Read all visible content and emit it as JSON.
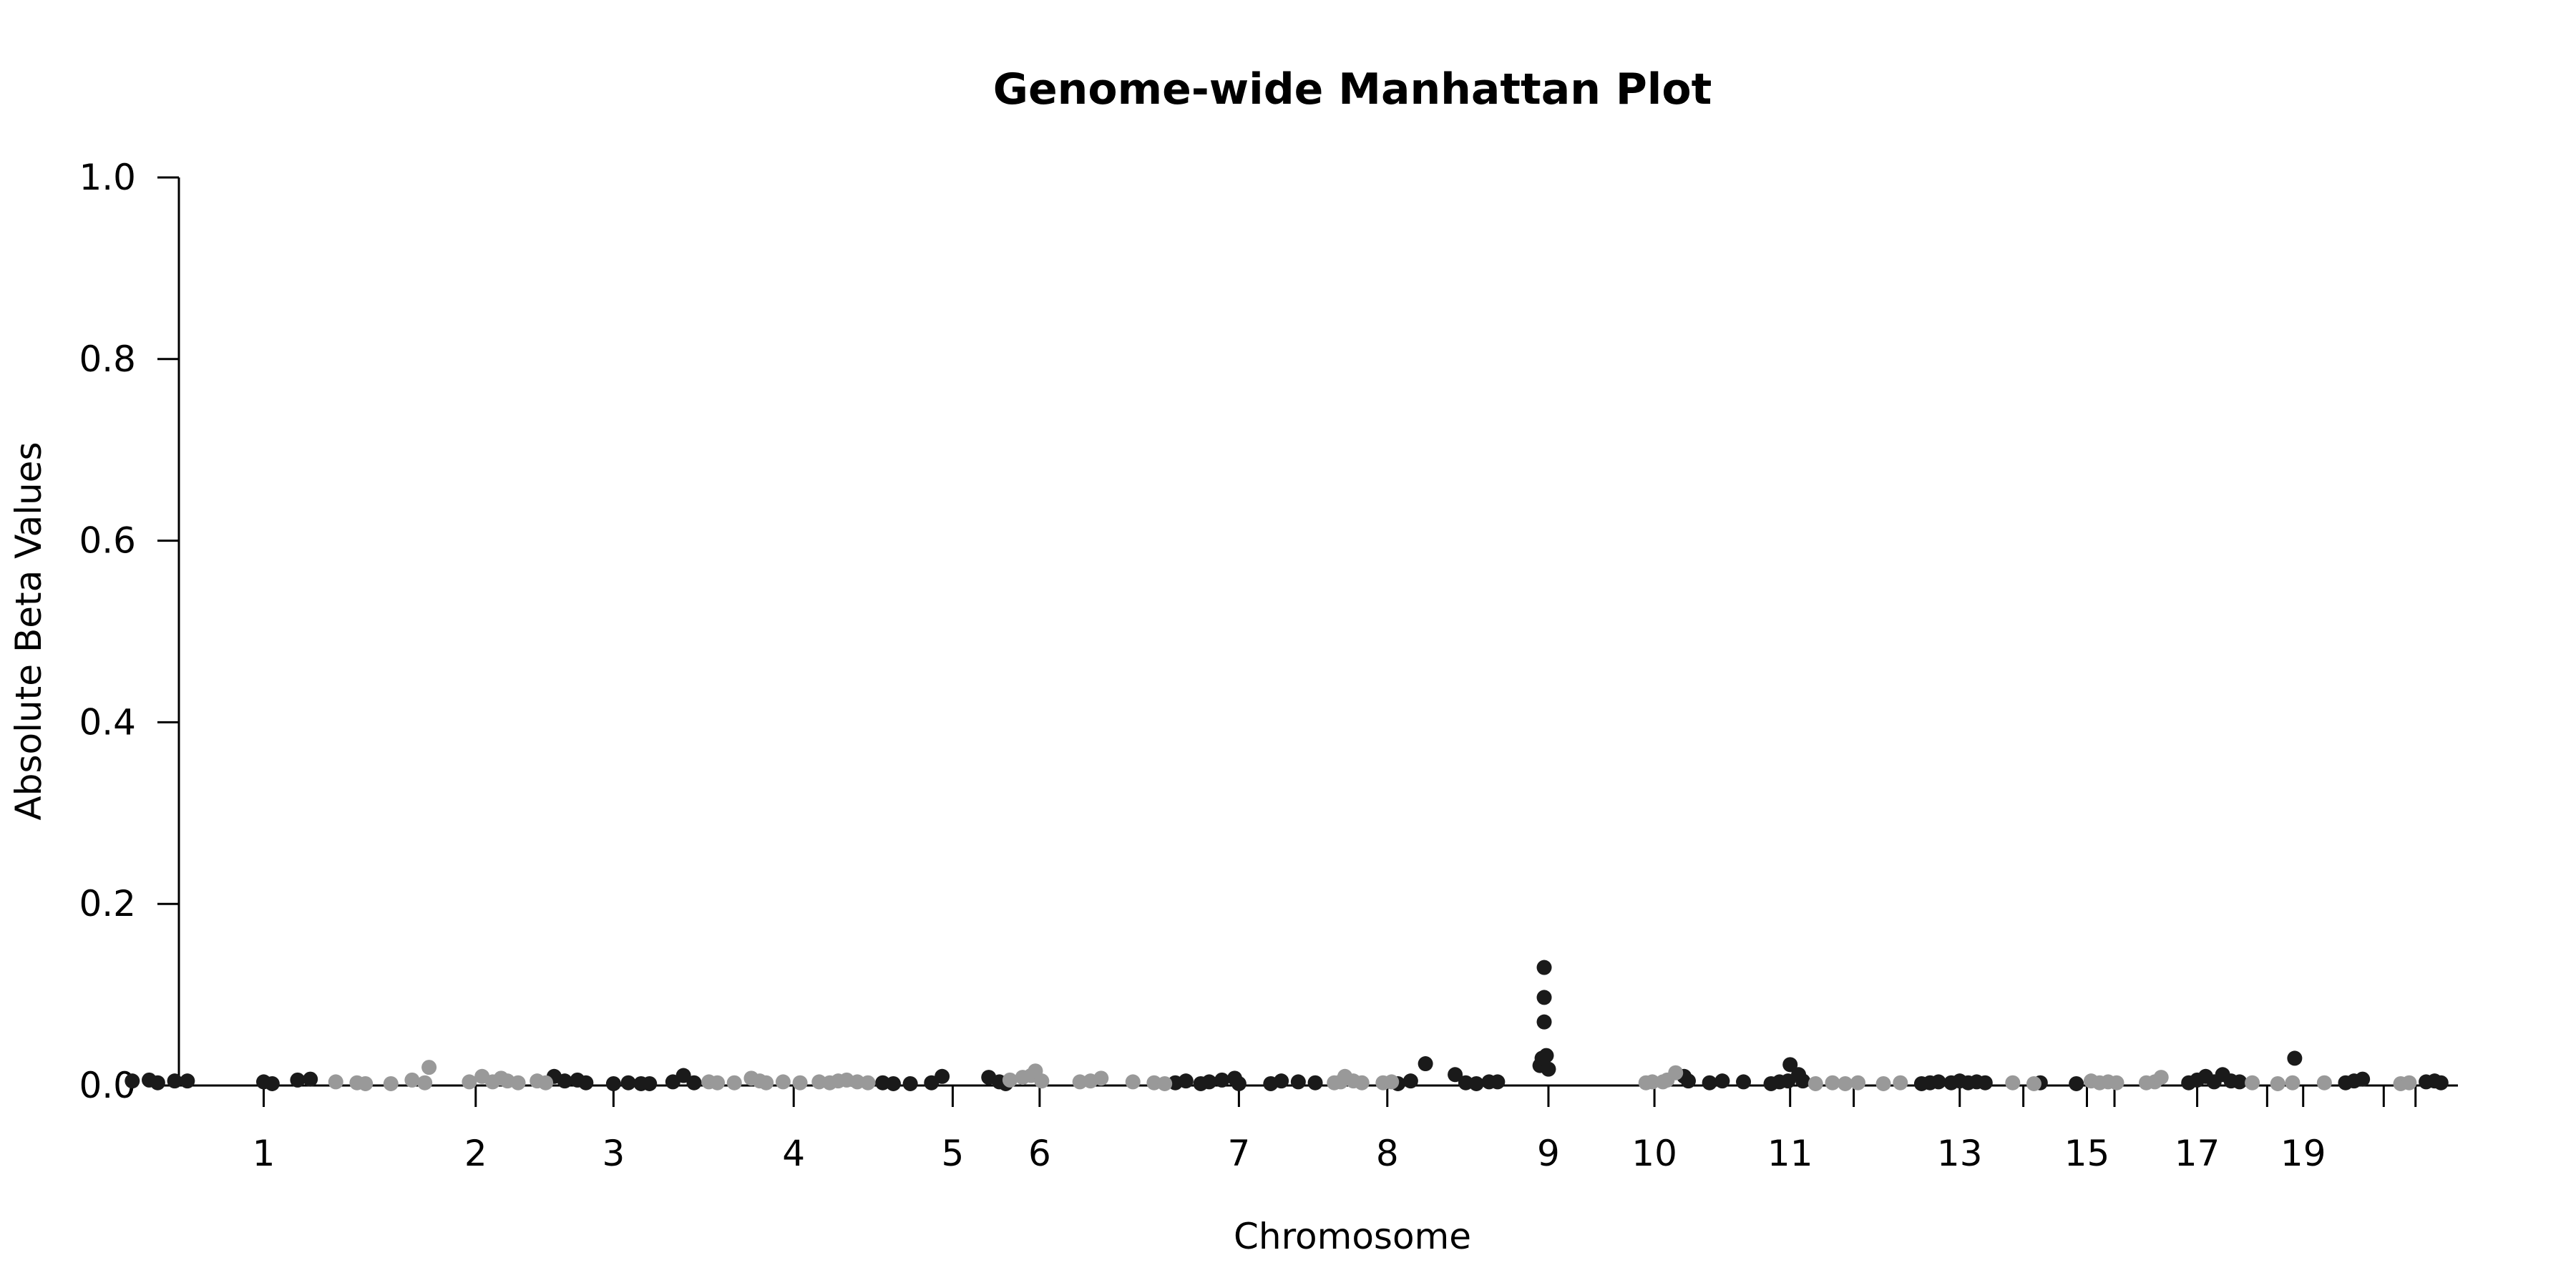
{
  "chart_data": {
    "type": "scatter",
    "title": "Genome-wide Manhattan Plot",
    "xlabel": "Chromosome",
    "ylabel": "Absolute Beta Values",
    "ylim": [
      0,
      1
    ],
    "xlim": [
      -0.4,
      10.35
    ],
    "yticks": [
      0.0,
      0.2,
      0.4,
      0.6,
      0.8,
      1.0
    ],
    "ytick_labels": [
      "0.0",
      "0.2",
      "0.4",
      "0.6",
      "0.8",
      "1.0"
    ],
    "chromosome_ticks": [
      {
        "label": "1",
        "x": 0.0
      },
      {
        "label": "2",
        "x": 1.0
      },
      {
        "label": "3",
        "x": 1.65
      },
      {
        "label": "4",
        "x": 2.5
      },
      {
        "label": "5",
        "x": 3.25
      },
      {
        "label": "6",
        "x": 3.66
      },
      {
        "label": "7",
        "x": 4.6
      },
      {
        "label": "8",
        "x": 5.3
      },
      {
        "label": "9",
        "x": 6.06
      },
      {
        "label": "10",
        "x": 6.56
      },
      {
        "label": "11",
        "x": 7.2
      },
      {
        "label": "",
        "x": 7.5
      },
      {
        "label": "13",
        "x": 8.0
      },
      {
        "label": "",
        "x": 8.3
      },
      {
        "label": "15",
        "x": 8.6
      },
      {
        "label": "",
        "x": 8.73
      },
      {
        "label": "17",
        "x": 9.12
      },
      {
        "label": "",
        "x": 9.45
      },
      {
        "label": "19",
        "x": 9.62
      },
      {
        "label": "",
        "x": 10.0
      },
      {
        "label": "",
        "x": 10.15
      }
    ],
    "grid": false,
    "legend": "none",
    "series": [
      {
        "color": "#1a1a1a",
        "points": [
          [
            -0.62,
            0.005
          ],
          [
            -0.54,
            0.006
          ],
          [
            -0.5,
            0.003
          ],
          [
            -0.42,
            0.005
          ],
          [
            -0.36,
            0.005
          ],
          [
            0.0,
            0.004
          ],
          [
            0.04,
            0.002
          ],
          [
            0.16,
            0.006
          ],
          [
            0.22,
            0.007
          ],
          [
            1.37,
            0.01
          ],
          [
            1.42,
            0.005
          ],
          [
            1.48,
            0.006
          ],
          [
            1.52,
            0.003
          ],
          [
            1.65,
            0.002
          ],
          [
            1.72,
            0.003
          ],
          [
            1.78,
            0.002
          ],
          [
            1.82,
            0.002
          ],
          [
            1.93,
            0.004
          ],
          [
            1.98,
            0.011
          ],
          [
            2.03,
            0.003
          ],
          [
            2.92,
            0.003
          ],
          [
            2.97,
            0.002
          ],
          [
            3.05,
            0.002
          ],
          [
            3.15,
            0.003
          ],
          [
            3.2,
            0.01
          ],
          [
            3.42,
            0.009
          ],
          [
            3.47,
            0.004
          ],
          [
            3.5,
            0.002
          ],
          [
            4.3,
            0.003
          ],
          [
            4.35,
            0.005
          ],
          [
            4.42,
            0.002
          ],
          [
            4.46,
            0.004
          ],
          [
            4.52,
            0.006
          ],
          [
            4.58,
            0.008
          ],
          [
            4.6,
            0.002
          ],
          [
            4.75,
            0.002
          ],
          [
            4.8,
            0.005
          ],
          [
            4.88,
            0.004
          ],
          [
            4.96,
            0.003
          ],
          [
            5.35,
            0.002
          ],
          [
            5.41,
            0.005
          ],
          [
            5.48,
            0.024
          ],
          [
            5.62,
            0.012
          ],
          [
            5.67,
            0.003
          ],
          [
            5.72,
            0.002
          ],
          [
            5.78,
            0.004
          ],
          [
            5.82,
            0.004
          ],
          [
            6.02,
            0.022
          ],
          [
            6.03,
            0.03
          ],
          [
            6.04,
            0.13
          ],
          [
            6.04,
            0.097
          ],
          [
            6.04,
            0.07
          ],
          [
            6.05,
            0.033
          ],
          [
            6.06,
            0.018
          ],
          [
            6.7,
            0.01
          ],
          [
            6.72,
            0.005
          ],
          [
            6.82,
            0.003
          ],
          [
            6.88,
            0.005
          ],
          [
            6.98,
            0.004
          ],
          [
            7.11,
            0.002
          ],
          [
            7.15,
            0.004
          ],
          [
            7.19,
            0.005
          ],
          [
            7.2,
            0.023
          ],
          [
            7.24,
            0.012
          ],
          [
            7.26,
            0.005
          ],
          [
            7.82,
            0.002
          ],
          [
            7.86,
            0.003
          ],
          [
            7.9,
            0.004
          ],
          [
            7.96,
            0.003
          ],
          [
            8.0,
            0.005
          ],
          [
            8.04,
            0.003
          ],
          [
            8.08,
            0.004
          ],
          [
            8.12,
            0.003
          ],
          [
            8.38,
            0.003
          ],
          [
            8.55,
            0.002
          ],
          [
            9.08,
            0.003
          ],
          [
            9.12,
            0.006
          ],
          [
            9.16,
            0.01
          ],
          [
            9.2,
            0.004
          ],
          [
            9.24,
            0.012
          ],
          [
            9.28,
            0.005
          ],
          [
            9.32,
            0.004
          ],
          [
            9.58,
            0.03
          ],
          [
            9.82,
            0.003
          ],
          [
            9.86,
            0.005
          ],
          [
            9.9,
            0.007
          ],
          [
            10.2,
            0.004
          ],
          [
            10.24,
            0.005
          ],
          [
            10.27,
            0.003
          ]
        ]
      },
      {
        "color": "#999999",
        "points": [
          [
            0.34,
            0.004
          ],
          [
            0.44,
            0.003
          ],
          [
            0.48,
            0.002
          ],
          [
            0.6,
            0.002
          ],
          [
            0.7,
            0.006
          ],
          [
            0.76,
            0.003
          ],
          [
            0.78,
            0.02
          ],
          [
            0.97,
            0.004
          ],
          [
            1.03,
            0.01
          ],
          [
            1.08,
            0.004
          ],
          [
            1.12,
            0.008
          ],
          [
            1.15,
            0.005
          ],
          [
            1.2,
            0.003
          ],
          [
            1.29,
            0.005
          ],
          [
            1.33,
            0.003
          ],
          [
            2.1,
            0.004
          ],
          [
            2.14,
            0.003
          ],
          [
            2.22,
            0.003
          ],
          [
            2.3,
            0.008
          ],
          [
            2.34,
            0.005
          ],
          [
            2.37,
            0.003
          ],
          [
            2.45,
            0.004
          ],
          [
            2.53,
            0.003
          ],
          [
            2.62,
            0.004
          ],
          [
            2.67,
            0.003
          ],
          [
            2.71,
            0.005
          ],
          [
            2.75,
            0.006
          ],
          [
            2.8,
            0.004
          ],
          [
            2.85,
            0.003
          ],
          [
            3.52,
            0.006
          ],
          [
            3.58,
            0.009
          ],
          [
            3.62,
            0.011
          ],
          [
            3.64,
            0.016
          ],
          [
            3.67,
            0.005
          ],
          [
            3.85,
            0.004
          ],
          [
            3.9,
            0.005
          ],
          [
            3.95,
            0.008
          ],
          [
            4.1,
            0.004
          ],
          [
            4.2,
            0.003
          ],
          [
            4.25,
            0.002
          ],
          [
            5.05,
            0.003
          ],
          [
            5.08,
            0.004
          ],
          [
            5.1,
            0.01
          ],
          [
            5.14,
            0.005
          ],
          [
            5.18,
            0.003
          ],
          [
            5.28,
            0.003
          ],
          [
            5.32,
            0.004
          ],
          [
            6.52,
            0.003
          ],
          [
            6.55,
            0.004
          ],
          [
            6.6,
            0.004
          ],
          [
            6.62,
            0.006
          ],
          [
            6.66,
            0.014
          ],
          [
            7.32,
            0.002
          ],
          [
            7.4,
            0.003
          ],
          [
            7.46,
            0.002
          ],
          [
            7.52,
            0.003
          ],
          [
            7.64,
            0.002
          ],
          [
            7.72,
            0.003
          ],
          [
            8.25,
            0.003
          ],
          [
            8.35,
            0.002
          ],
          [
            8.62,
            0.005
          ],
          [
            8.66,
            0.003
          ],
          [
            8.7,
            0.004
          ],
          [
            8.74,
            0.003
          ],
          [
            8.88,
            0.003
          ],
          [
            8.92,
            0.004
          ],
          [
            8.95,
            0.009
          ],
          [
            9.38,
            0.003
          ],
          [
            9.5,
            0.002
          ],
          [
            9.57,
            0.003
          ],
          [
            9.72,
            0.003
          ],
          [
            10.08,
            0.002
          ],
          [
            10.12,
            0.003
          ]
        ]
      }
    ]
  }
}
